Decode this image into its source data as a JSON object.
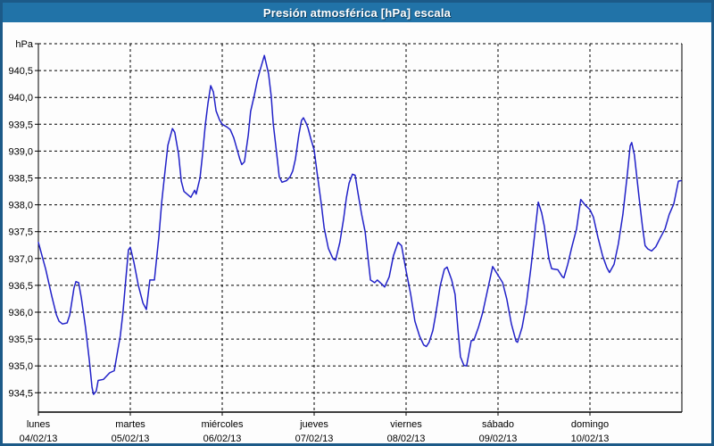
{
  "window": {
    "title": "Presión atmosférica [hPa] escala"
  },
  "colors": {
    "title_bar": "#2173a8",
    "frame": "#1c5a88",
    "line": "#2121c8",
    "grid": "#000000",
    "text": "#000000",
    "panel": "#fdfdfd"
  },
  "chart_data": {
    "type": "line",
    "title": "Presión atmosférica [hPa] escala",
    "ylabel": "hPa",
    "unit": "hPa",
    "grid": "dashed",
    "legend": "none",
    "ylim": [
      934.2,
      941.0
    ],
    "top_line": {
      "value": 941.0,
      "label": "hPa"
    },
    "y_ticks": [
      {
        "value": 940.5,
        "label": "940,5"
      },
      {
        "value": 940.0,
        "label": "940,0"
      },
      {
        "value": 939.5,
        "label": "939,5"
      },
      {
        "value": 939.0,
        "label": "939,0"
      },
      {
        "value": 938.5,
        "label": "938,5"
      },
      {
        "value": 938.0,
        "label": "938,0"
      },
      {
        "value": 937.5,
        "label": "937,5"
      },
      {
        "value": 937.0,
        "label": "937,0"
      },
      {
        "value": 936.5,
        "label": "936,5"
      },
      {
        "value": 936.0,
        "label": "936,0"
      },
      {
        "value": 935.5,
        "label": "935,5"
      },
      {
        "value": 935.0,
        "label": "935,0"
      },
      {
        "value": 934.5,
        "label": "934,5"
      }
    ],
    "x_hours_range": [
      0,
      168
    ],
    "x_days": [
      {
        "name": "lunes",
        "date": "04/02/13"
      },
      {
        "name": "martes",
        "date": "05/02/13"
      },
      {
        "name": "miércoles",
        "date": "06/02/13"
      },
      {
        "name": "jueves",
        "date": "07/02/13"
      },
      {
        "name": "viernes",
        "date": "08/02/13"
      },
      {
        "name": "sábado",
        "date": "09/02/13"
      },
      {
        "name": "domingo",
        "date": "10/02/13"
      }
    ],
    "series": [
      {
        "name": "Presión atmosférica",
        "points": [
          [
            0,
            937.3
          ],
          [
            1.9,
            936.8
          ],
          [
            3.5,
            936.3
          ],
          [
            4.7,
            935.95
          ],
          [
            5.4,
            935.83
          ],
          [
            6.3,
            935.78
          ],
          [
            7.5,
            935.8
          ],
          [
            8.2,
            935.95
          ],
          [
            9.3,
            936.45
          ],
          [
            9.8,
            936.57
          ],
          [
            10.5,
            936.55
          ],
          [
            11.2,
            936.27
          ],
          [
            12.3,
            935.72
          ],
          [
            13.3,
            935.1
          ],
          [
            14,
            934.6
          ],
          [
            14.4,
            934.47
          ],
          [
            15.1,
            934.53
          ],
          [
            15.6,
            934.73
          ],
          [
            17,
            934.75
          ],
          [
            18.6,
            934.87
          ],
          [
            19.8,
            934.91
          ],
          [
            20.5,
            935.2
          ],
          [
            21.4,
            935.56
          ],
          [
            22.1,
            936
          ],
          [
            22.8,
            936.6
          ],
          [
            23.5,
            937.16
          ],
          [
            24,
            937.21
          ],
          [
            24.9,
            936.94
          ],
          [
            26.1,
            936.5
          ],
          [
            27.3,
            936.17
          ],
          [
            28.2,
            936.05
          ],
          [
            29.1,
            936.6
          ],
          [
            30.3,
            936.6
          ],
          [
            31.5,
            937.44
          ],
          [
            32.2,
            938.05
          ],
          [
            33.1,
            938.66
          ],
          [
            33.8,
            939.11
          ],
          [
            35,
            939.42
          ],
          [
            35.6,
            939.35
          ],
          [
            36.6,
            938.94
          ],
          [
            37.3,
            938.44
          ],
          [
            38,
            938.25
          ],
          [
            39.8,
            938.14
          ],
          [
            40.8,
            938.27
          ],
          [
            41.2,
            938.2
          ],
          [
            42.2,
            938.5
          ],
          [
            42.8,
            938.9
          ],
          [
            43.6,
            939.5
          ],
          [
            44.3,
            939.9
          ],
          [
            45,
            940.22
          ],
          [
            45.7,
            940.1
          ],
          [
            46.4,
            939.75
          ],
          [
            47.3,
            939.58
          ],
          [
            48,
            939.5
          ],
          [
            49.2,
            939.45
          ],
          [
            50.1,
            939.4
          ],
          [
            51,
            939.25
          ],
          [
            52,
            939
          ],
          [
            52.6,
            938.85
          ],
          [
            53.1,
            938.75
          ],
          [
            53.8,
            938.8
          ],
          [
            54.8,
            939.3
          ],
          [
            55.4,
            939.74
          ],
          [
            56.4,
            940.05
          ],
          [
            57.1,
            940.3
          ],
          [
            57.8,
            940.49
          ],
          [
            59,
            940.78
          ],
          [
            60.1,
            940.44
          ],
          [
            60.8,
            940.02
          ],
          [
            61.3,
            939.52
          ],
          [
            62.2,
            938.97
          ],
          [
            62.9,
            938.52
          ],
          [
            63.6,
            938.42
          ],
          [
            64.8,
            938.45
          ],
          [
            65.7,
            938.52
          ],
          [
            66.4,
            938.63
          ],
          [
            67.1,
            938.85
          ],
          [
            68,
            939.3
          ],
          [
            68.7,
            939.57
          ],
          [
            69.2,
            939.62
          ],
          [
            69.9,
            939.52
          ],
          [
            70.4,
            939.43
          ],
          [
            71.1,
            939.24
          ],
          [
            72,
            939.02
          ],
          [
            72.9,
            938.52
          ],
          [
            73.9,
            937.99
          ],
          [
            74.6,
            937.57
          ],
          [
            75.7,
            937.19
          ],
          [
            76.9,
            937
          ],
          [
            77.6,
            936.97
          ],
          [
            78.7,
            937.3
          ],
          [
            79.7,
            937.74
          ],
          [
            80.4,
            938.13
          ],
          [
            81.1,
            938.4
          ],
          [
            82,
            938.57
          ],
          [
            82.7,
            938.55
          ],
          [
            83.4,
            938.24
          ],
          [
            84.4,
            937.82
          ],
          [
            85.3,
            937.5
          ],
          [
            86,
            937.05
          ],
          [
            86.7,
            936.6
          ],
          [
            87.8,
            936.55
          ],
          [
            88.5,
            936.6
          ],
          [
            89.7,
            936.52
          ],
          [
            90.4,
            936.47
          ],
          [
            91.6,
            936.66
          ],
          [
            92.7,
            937.05
          ],
          [
            93.9,
            937.3
          ],
          [
            94.8,
            937.24
          ],
          [
            96,
            936.77
          ],
          [
            97.2,
            936.33
          ],
          [
            98.3,
            935.83
          ],
          [
            99.5,
            935.56
          ],
          [
            100.6,
            935.39
          ],
          [
            101.3,
            935.36
          ],
          [
            102,
            935.44
          ],
          [
            103,
            935.66
          ],
          [
            103.7,
            935.94
          ],
          [
            104.9,
            936.49
          ],
          [
            106,
            936.8
          ],
          [
            106.7,
            936.84
          ],
          [
            107.9,
            936.6
          ],
          [
            108.8,
            936.33
          ],
          [
            109.5,
            935.72
          ],
          [
            110.2,
            935.17
          ],
          [
            111.1,
            935.01
          ],
          [
            111.8,
            935
          ],
          [
            113,
            935.47
          ],
          [
            113.7,
            935.48
          ],
          [
            114.9,
            935.72
          ],
          [
            116,
            935.99
          ],
          [
            117.2,
            936.39
          ],
          [
            118.6,
            936.85
          ],
          [
            120,
            936.69
          ],
          [
            121.2,
            936.55
          ],
          [
            122.3,
            936.24
          ],
          [
            123.5,
            935.78
          ],
          [
            124.7,
            935.46
          ],
          [
            125.1,
            935.44
          ],
          [
            126.3,
            935.72
          ],
          [
            127.4,
            936.16
          ],
          [
            128.6,
            936.83
          ],
          [
            129.8,
            937.6
          ],
          [
            130.5,
            938.05
          ],
          [
            131.4,
            937.85
          ],
          [
            132.1,
            937.6
          ],
          [
            133.3,
            936.99
          ],
          [
            134,
            936.81
          ],
          [
            135.6,
            936.79
          ],
          [
            136.8,
            936.66
          ],
          [
            137.2,
            936.64
          ],
          [
            138.2,
            936.89
          ],
          [
            139.3,
            937.22
          ],
          [
            140.5,
            937.55
          ],
          [
            141.6,
            938.1
          ],
          [
            142.8,
            937.99
          ],
          [
            144,
            937.91
          ],
          [
            144.9,
            937.77
          ],
          [
            146.1,
            937.39
          ],
          [
            147.3,
            937.05
          ],
          [
            148.4,
            936.83
          ],
          [
            149.1,
            936.74
          ],
          [
            150.3,
            936.89
          ],
          [
            151.4,
            937.27
          ],
          [
            152.6,
            937.82
          ],
          [
            153.8,
            938.6
          ],
          [
            154.5,
            939.1
          ],
          [
            154.9,
            939.16
          ],
          [
            155.6,
            938.93
          ],
          [
            156.8,
            938.16
          ],
          [
            157.7,
            937.6
          ],
          [
            158.4,
            937.24
          ],
          [
            159.1,
            937.18
          ],
          [
            160.1,
            937.14
          ],
          [
            161.2,
            937.22
          ],
          [
            162.4,
            937.39
          ],
          [
            163.6,
            937.55
          ],
          [
            164.7,
            937.82
          ],
          [
            165.9,
            938.02
          ],
          [
            167.1,
            938.44
          ],
          [
            167.8,
            938.45
          ]
        ]
      }
    ]
  }
}
